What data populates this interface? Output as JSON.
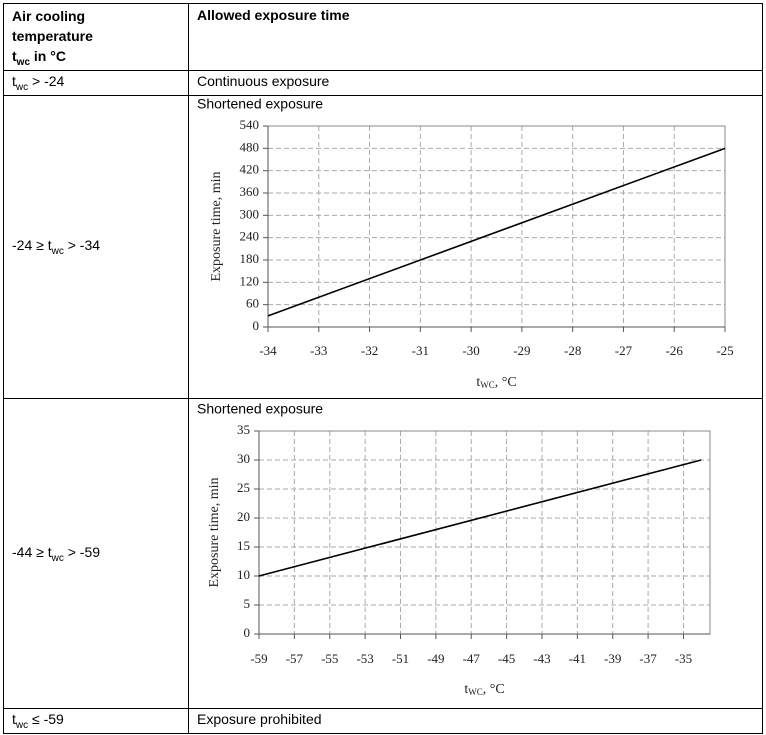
{
  "table": {
    "header": [
      {
        "pre": "Air cooling temperature t",
        "sub": "wc",
        "post": " in °C"
      },
      "Allowed exposure time"
    ],
    "rows": [
      [
        {
          "pre": "t",
          "sub": "wc",
          "post": " > -24"
        },
        "Continuous exposure"
      ],
      [
        {
          "pre": "-24 ≥ t",
          "sub": "wc",
          "post": " > -34"
        }
      ],
      [
        {
          "pre": "-44 ≥ t",
          "sub": "wc",
          "post": " > -59"
        }
      ],
      [
        {
          "pre": "t",
          "sub": "wc",
          "post": " ≤ -59"
        },
        "Exposure prohibited"
      ]
    ]
  },
  "chart_data": [
    {
      "type": "line",
      "title": "Shortened exposure",
      "color": "#000000",
      "grid": true,
      "x": [
        -34,
        -25
      ],
      "values": [
        30,
        480
      ],
      "xlim": [
        -34,
        -25
      ],
      "xticks": [
        -34,
        -33,
        -32,
        -31,
        -30,
        -29,
        -28,
        -27,
        -26,
        -25
      ],
      "ylim": [
        0,
        540
      ],
      "yticks": [
        0,
        60,
        120,
        180,
        240,
        300,
        360,
        420,
        480,
        540
      ],
      "ylabel": "Exposure time, min",
      "xlabel": {
        "pre": "t",
        "sub": "WC",
        "post": ", °C"
      }
    },
    {
      "type": "line",
      "title": "Shortened exposure",
      "color": "#000000",
      "grid": true,
      "x": [
        -59,
        -34
      ],
      "values": [
        10,
        30
      ],
      "xlim": [
        -59,
        -33.5
      ],
      "xticks": [
        -59,
        -57,
        -55,
        -53,
        -51,
        -49,
        -47,
        -45,
        -43,
        -41,
        -39,
        -37,
        -35
      ],
      "ylim": [
        0,
        35
      ],
      "yticks": [
        0,
        5,
        10,
        15,
        20,
        25,
        30,
        35
      ],
      "ylabel": "Exposure time, min",
      "xlabel": {
        "pre": "t",
        "sub": "WC",
        "post": ", °C"
      }
    }
  ]
}
